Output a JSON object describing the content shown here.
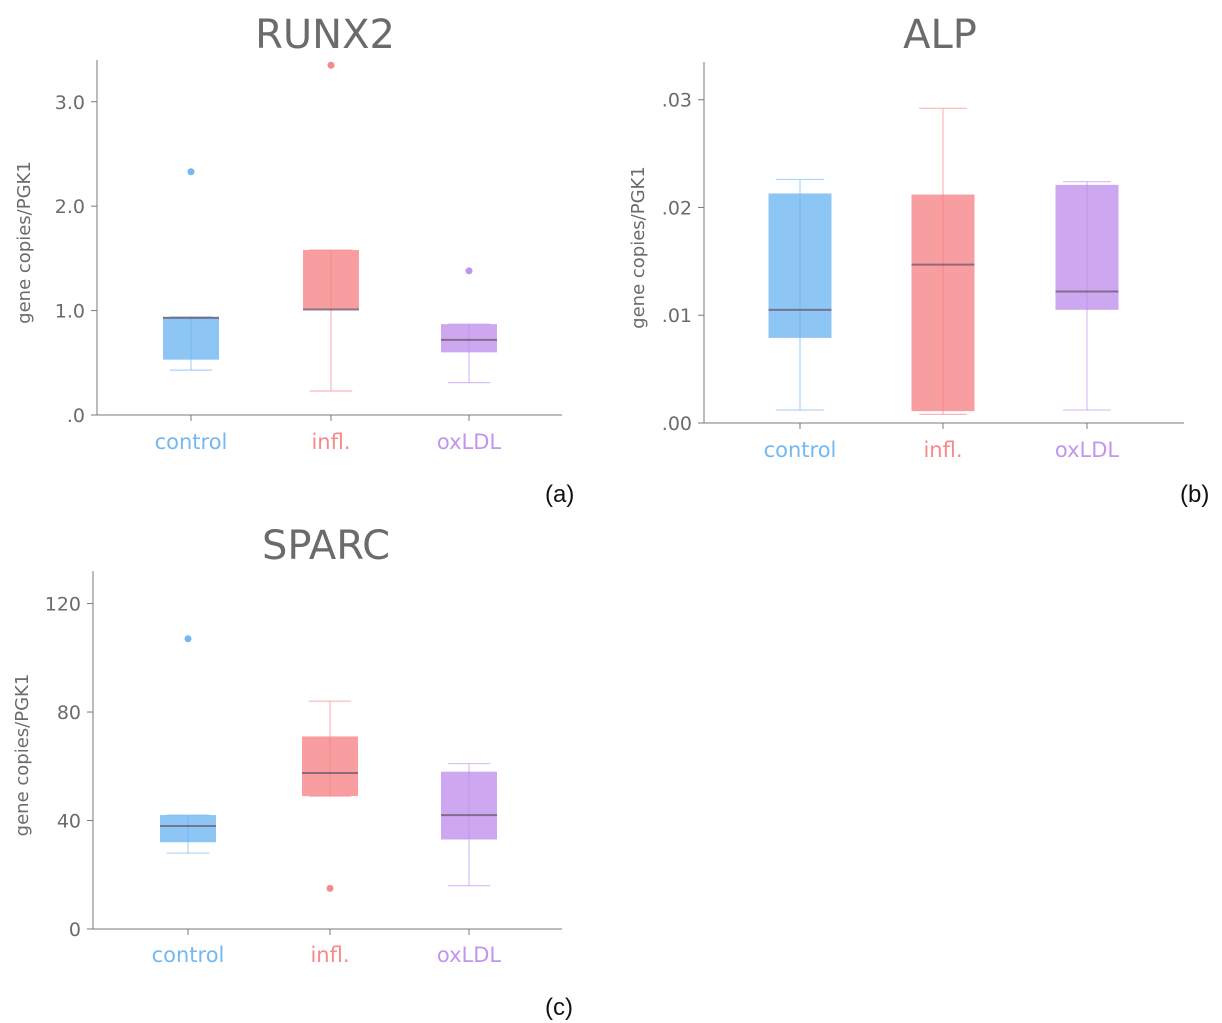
{
  "colors": {
    "control": "#74b8f2",
    "infl": "#f7898b",
    "oxldl": "#c295ee",
    "text": "#6b6b6b",
    "axis": "#7a7a7a"
  },
  "chart_data": [
    {
      "type": "box",
      "panel_label": "(a)",
      "title": "RUNX2",
      "ylabel": "gene copies/PGK1",
      "ylim": [
        0,
        3.4
      ],
      "yticks": [
        0,
        1,
        2,
        3
      ],
      "ytick_labels": [
        ".0",
        "1.0",
        "2.0",
        "3.0"
      ],
      "categories": [
        "control",
        "infl.",
        "oxLDL"
      ],
      "boxes": [
        {
          "category": "control",
          "whisker_low": 0.43,
          "q1": 0.53,
          "median": 0.93,
          "q3": 0.94,
          "whisker_high": 0.94,
          "outliers": [
            2.33
          ]
        },
        {
          "category": "infl.",
          "whisker_low": 0.23,
          "q1": 1.01,
          "median": 1.01,
          "q3": 1.58,
          "whisker_high": 1.58,
          "outliers": [
            3.35
          ]
        },
        {
          "category": "oxLDL",
          "whisker_low": 0.31,
          "q1": 0.6,
          "median": 0.72,
          "q3": 0.87,
          "whisker_high": 0.87,
          "outliers": [
            1.38
          ]
        }
      ]
    },
    {
      "type": "box",
      "panel_label": "(b)",
      "title": "ALP",
      "ylabel": "gene copies/PGK1",
      "ylim": [
        0,
        0.0335
      ],
      "yticks": [
        0,
        0.01,
        0.02,
        0.03
      ],
      "ytick_labels": [
        ".00",
        ".01",
        ".02",
        ".03"
      ],
      "categories": [
        "control",
        "infl.",
        "oxLDL"
      ],
      "boxes": [
        {
          "category": "control",
          "whisker_low": 0.0012,
          "q1": 0.0079,
          "median": 0.0105,
          "q3": 0.0213,
          "whisker_high": 0.0226,
          "outliers": []
        },
        {
          "category": "infl.",
          "whisker_low": 0.0008,
          "q1": 0.0011,
          "median": 0.0147,
          "q3": 0.0212,
          "whisker_high": 0.0292,
          "outliers": []
        },
        {
          "category": "oxLDL",
          "whisker_low": 0.0012,
          "q1": 0.0105,
          "median": 0.0122,
          "q3": 0.0221,
          "whisker_high": 0.0224,
          "outliers": []
        }
      ]
    },
    {
      "type": "box",
      "panel_label": "(c)",
      "title": "SPARC",
      "ylabel": "gene copies/PGK1",
      "ylim": [
        0,
        132
      ],
      "yticks": [
        0,
        40,
        80,
        120
      ],
      "ytick_labels": [
        "0",
        "40",
        "80",
        "120"
      ],
      "categories": [
        "control",
        "infl.",
        "oxLDL"
      ],
      "boxes": [
        {
          "category": "control",
          "whisker_low": 28,
          "q1": 32,
          "median": 38,
          "q3": 42,
          "whisker_high": 42,
          "outliers": [
            107
          ]
        },
        {
          "category": "infl.",
          "whisker_low": 49,
          "q1": 49,
          "median": 57.5,
          "q3": 71,
          "whisker_high": 84,
          "outliers": [
            15
          ]
        },
        {
          "category": "oxLDL",
          "whisker_low": 16,
          "q1": 33,
          "median": 42,
          "q3": 58,
          "whisker_high": 61,
          "outliers": []
        }
      ]
    }
  ]
}
